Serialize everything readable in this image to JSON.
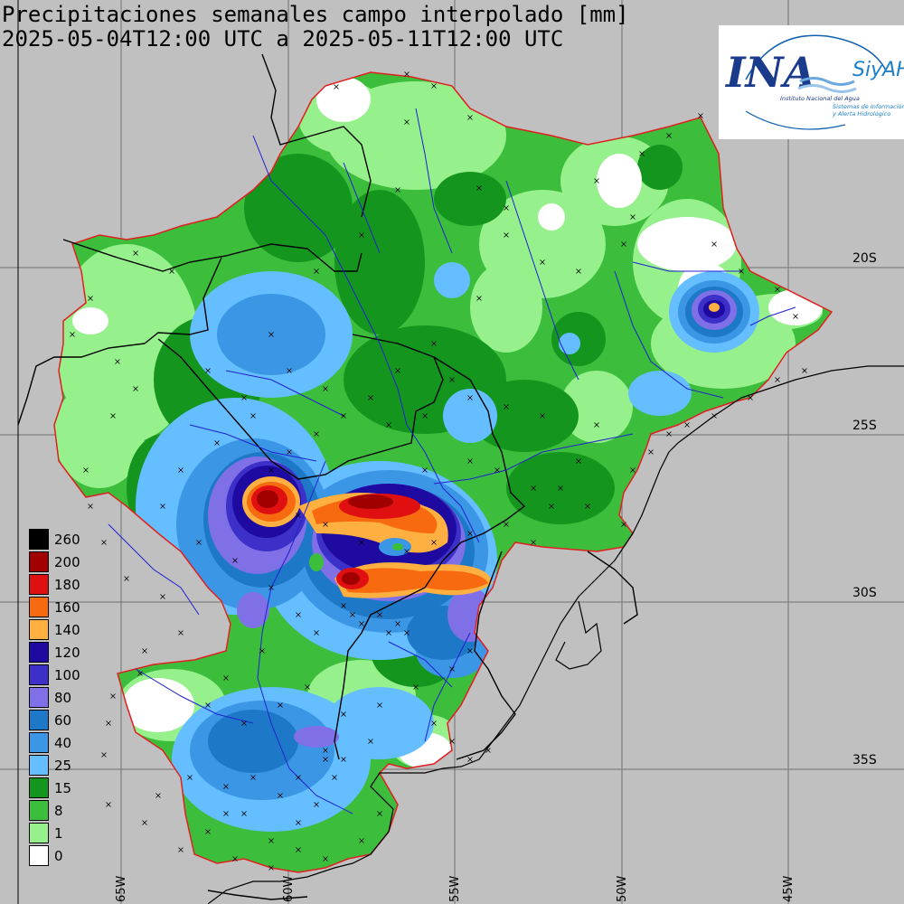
{
  "title": {
    "line1": "Precipitaciones semanales campo interpolado [mm]",
    "line2": "2025-05-04T12:00 UTC a 2025-05-11T12:00 UTC"
  },
  "logo": {
    "brand": "INA",
    "sub": "SiyAH",
    "line1": "Instituto Nacional del Agua",
    "line2": "Sistemas de Información",
    "line3": "y Alerta Hidrológico"
  },
  "lat_labels": [
    "20S",
    "25S",
    "30S",
    "35S"
  ],
  "lon_labels": [
    "65W",
    "60W",
    "55W",
    "50W",
    "45W"
  ],
  "legend": [
    {
      "label": "260",
      "color": "#000000"
    },
    {
      "label": "200",
      "color": "#a00000"
    },
    {
      "label": "180",
      "color": "#e01010"
    },
    {
      "label": "160",
      "color": "#f86a10"
    },
    {
      "label": "140",
      "color": "#ffb040"
    },
    {
      "label": "120",
      "color": "#1e0aa0"
    },
    {
      "label": "100",
      "color": "#3c30c8"
    },
    {
      "label": "80",
      "color": "#8070e8"
    },
    {
      "label": "60",
      "color": "#1e78c8"
    },
    {
      "label": "40",
      "color": "#3c96e6"
    },
    {
      "label": "25",
      "color": "#64beff"
    },
    {
      "label": "15",
      "color": "#14961e"
    },
    {
      "label": "8",
      "color": "#3cbe3c"
    },
    {
      "label": "1",
      "color": "#96f08c"
    },
    {
      "label": "0",
      "color": "#ffffff"
    }
  ]
}
